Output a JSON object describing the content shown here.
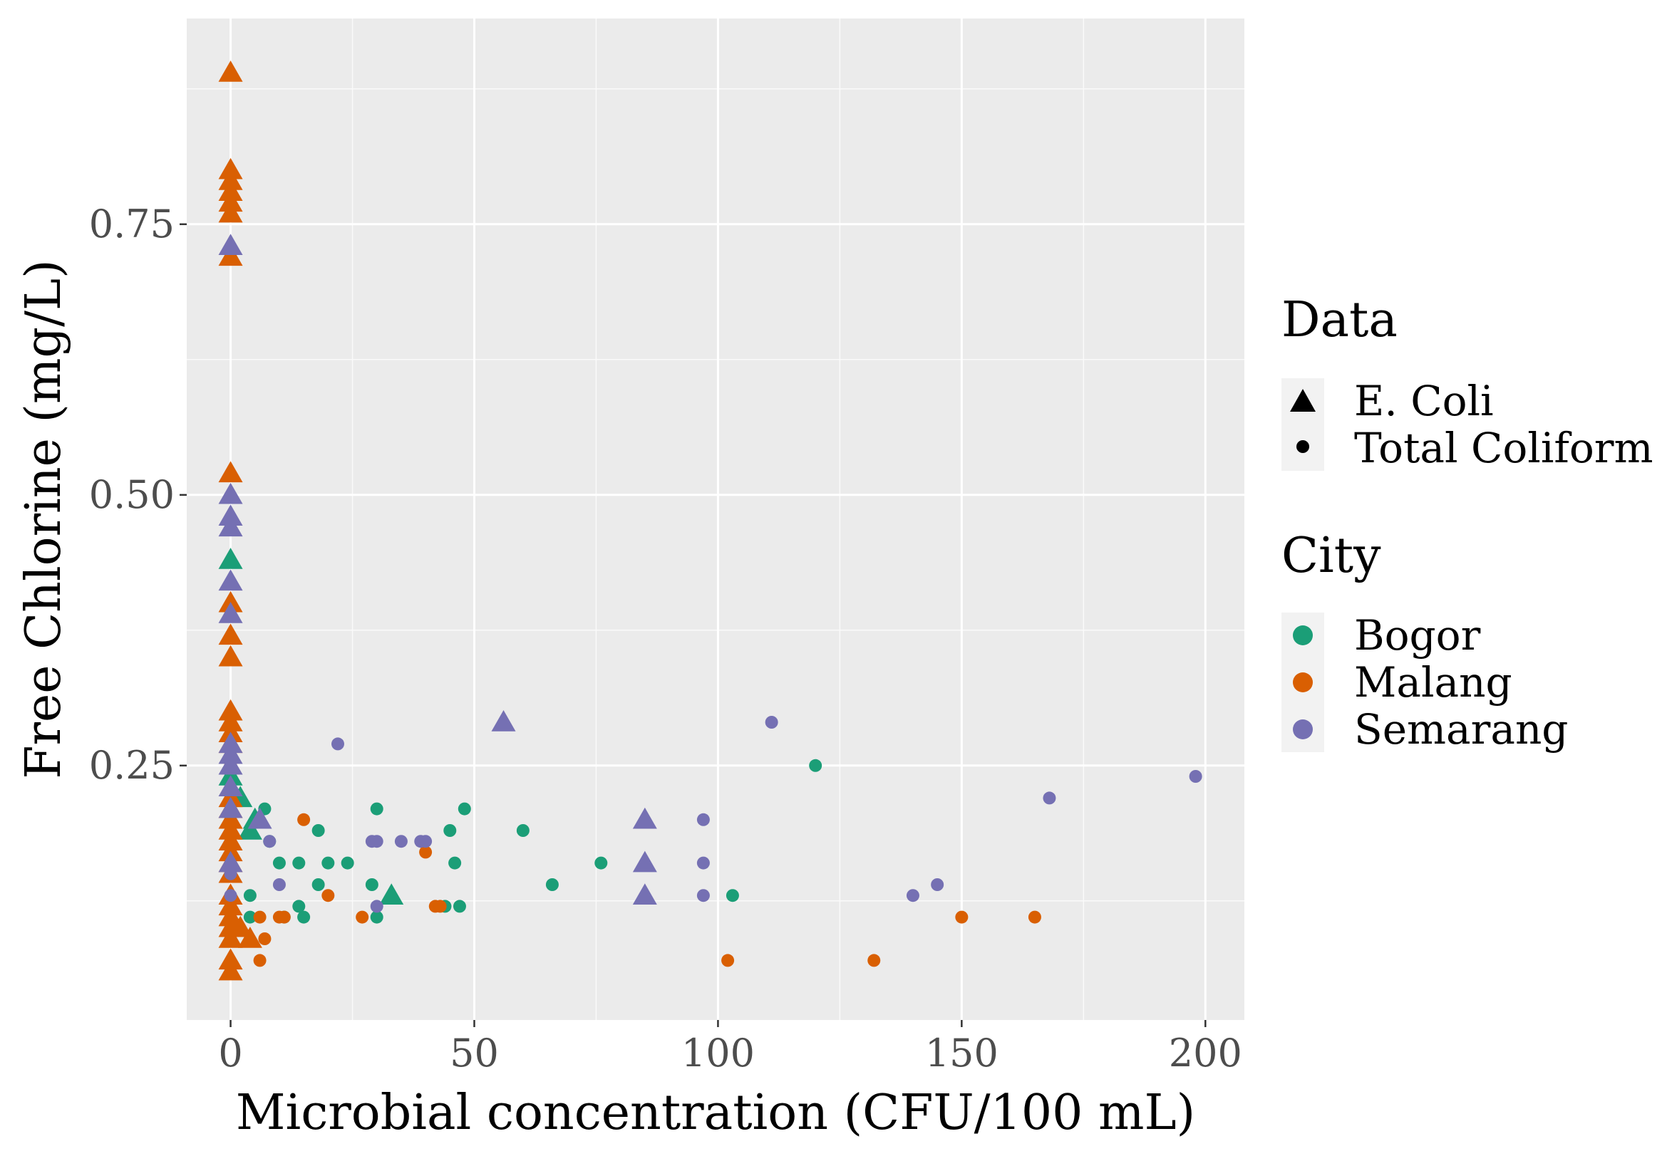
{
  "chart_data": {
    "type": "scatter",
    "title": "",
    "xlabel": "Microbial concentration (CFU/100 mL)",
    "ylabel": "Free Chlorine (mg/L)",
    "xlim": [
      -9,
      208
    ],
    "ylim": [
      0.015,
      0.94
    ],
    "x_ticks": [
      0,
      50,
      100,
      150,
      200
    ],
    "x_tick_labels": [
      "0",
      "50",
      "100",
      "150",
      "200"
    ],
    "y_ticks": [
      0.25,
      0.5,
      0.75
    ],
    "y_tick_labels": [
      "0.25",
      "0.50",
      "0.75"
    ],
    "x_minor_ticks": [
      25,
      75,
      125,
      175
    ],
    "y_minor_ticks": [
      0.125,
      0.375,
      0.625,
      0.875
    ],
    "grid": true,
    "legend": {
      "position": "right",
      "shape_title": "Data",
      "shape_items": [
        {
          "label": "E. Coli",
          "shape": "triangle"
        },
        {
          "label": "Total Coliform",
          "shape": "circle"
        }
      ],
      "color_title": "City",
      "color_items": [
        {
          "label": "Bogor",
          "color": "#1b9e77"
        },
        {
          "label": "Malang",
          "color": "#d95f02"
        },
        {
          "label": "Semarang",
          "color": "#7570b3"
        }
      ]
    },
    "series": [
      {
        "city": "Bogor",
        "data": "E. Coli",
        "color": "#1b9e77",
        "shape": "triangle",
        "points": [
          [
            0,
            0.44
          ],
          [
            0,
            0.24
          ],
          [
            2,
            0.22
          ],
          [
            4,
            0.19
          ],
          [
            5,
            0.2
          ],
          [
            33,
            0.13
          ]
        ]
      },
      {
        "city": "Bogor",
        "data": "Total Coliform",
        "color": "#1b9e77",
        "shape": "circle",
        "points": [
          [
            4,
            0.13
          ],
          [
            4,
            0.11
          ],
          [
            7,
            0.21
          ],
          [
            8,
            0.18
          ],
          [
            10,
            0.16
          ],
          [
            11,
            0.11
          ],
          [
            14,
            0.16
          ],
          [
            14,
            0.12
          ],
          [
            15,
            0.11
          ],
          [
            18,
            0.19
          ],
          [
            18,
            0.14
          ],
          [
            20,
            0.16
          ],
          [
            24,
            0.16
          ],
          [
            29,
            0.14
          ],
          [
            30,
            0.21
          ],
          [
            30,
            0.11
          ],
          [
            44,
            0.12
          ],
          [
            45,
            0.19
          ],
          [
            46,
            0.16
          ],
          [
            47,
            0.12
          ],
          [
            48,
            0.21
          ],
          [
            60,
            0.19
          ],
          [
            66,
            0.14
          ],
          [
            76,
            0.16
          ],
          [
            103,
            0.13
          ],
          [
            120,
            0.25
          ]
        ]
      },
      {
        "city": "Malang",
        "data": "E. Coli",
        "color": "#d95f02",
        "shape": "triangle",
        "points": [
          [
            0,
            0.89
          ],
          [
            0,
            0.8
          ],
          [
            0,
            0.79
          ],
          [
            0,
            0.78
          ],
          [
            0,
            0.77
          ],
          [
            0,
            0.76
          ],
          [
            0,
            0.72
          ],
          [
            0,
            0.52
          ],
          [
            0,
            0.4
          ],
          [
            0,
            0.37
          ],
          [
            0,
            0.35
          ],
          [
            0,
            0.3
          ],
          [
            0,
            0.29
          ],
          [
            0,
            0.28
          ],
          [
            0,
            0.27
          ],
          [
            0,
            0.22
          ],
          [
            0,
            0.21
          ],
          [
            0,
            0.2
          ],
          [
            0,
            0.19
          ],
          [
            0,
            0.18
          ],
          [
            0,
            0.17
          ],
          [
            0,
            0.16
          ],
          [
            0,
            0.15
          ],
          [
            0,
            0.13
          ],
          [
            0,
            0.12
          ],
          [
            0,
            0.11
          ],
          [
            0,
            0.1
          ],
          [
            0,
            0.09
          ],
          [
            0,
            0.07
          ],
          [
            0,
            0.06
          ],
          [
            2,
            0.1
          ],
          [
            4,
            0.09
          ]
        ]
      },
      {
        "city": "Malang",
        "data": "Total Coliform",
        "color": "#d95f02",
        "shape": "circle",
        "points": [
          [
            0,
            0.25
          ],
          [
            6,
            0.11
          ],
          [
            6,
            0.07
          ],
          [
            7,
            0.09
          ],
          [
            10,
            0.11
          ],
          [
            11,
            0.11
          ],
          [
            15,
            0.2
          ],
          [
            20,
            0.13
          ],
          [
            27,
            0.11
          ],
          [
            40,
            0.17
          ],
          [
            42,
            0.12
          ],
          [
            43,
            0.12
          ],
          [
            102,
            0.07
          ],
          [
            132,
            0.07
          ],
          [
            150,
            0.11
          ],
          [
            165,
            0.11
          ]
        ]
      },
      {
        "city": "Semarang",
        "data": "E. Coli",
        "color": "#7570b3",
        "shape": "triangle",
        "points": [
          [
            0,
            0.73
          ],
          [
            0,
            0.5
          ],
          [
            0,
            0.48
          ],
          [
            0,
            0.47
          ],
          [
            0,
            0.42
          ],
          [
            0,
            0.39
          ],
          [
            0,
            0.27
          ],
          [
            0,
            0.26
          ],
          [
            0,
            0.25
          ],
          [
            0,
            0.23
          ],
          [
            0,
            0.21
          ],
          [
            0,
            0.16
          ],
          [
            6,
            0.2
          ],
          [
            56,
            0.29
          ],
          [
            85,
            0.2
          ],
          [
            85,
            0.16
          ],
          [
            85,
            0.13
          ]
        ]
      },
      {
        "city": "Semarang",
        "data": "Total Coliform",
        "color": "#7570b3",
        "shape": "circle",
        "points": [
          [
            0,
            0.15
          ],
          [
            0,
            0.13
          ],
          [
            8,
            0.18
          ],
          [
            10,
            0.14
          ],
          [
            22,
            0.27
          ],
          [
            29,
            0.18
          ],
          [
            30,
            0.18
          ],
          [
            30,
            0.12
          ],
          [
            35,
            0.18
          ],
          [
            39,
            0.18
          ],
          [
            40,
            0.18
          ],
          [
            97,
            0.2
          ],
          [
            97,
            0.16
          ],
          [
            97,
            0.13
          ],
          [
            111,
            0.29
          ],
          [
            140,
            0.13
          ],
          [
            145,
            0.14
          ],
          [
            168,
            0.22
          ],
          [
            198,
            0.24
          ]
        ]
      }
    ]
  }
}
